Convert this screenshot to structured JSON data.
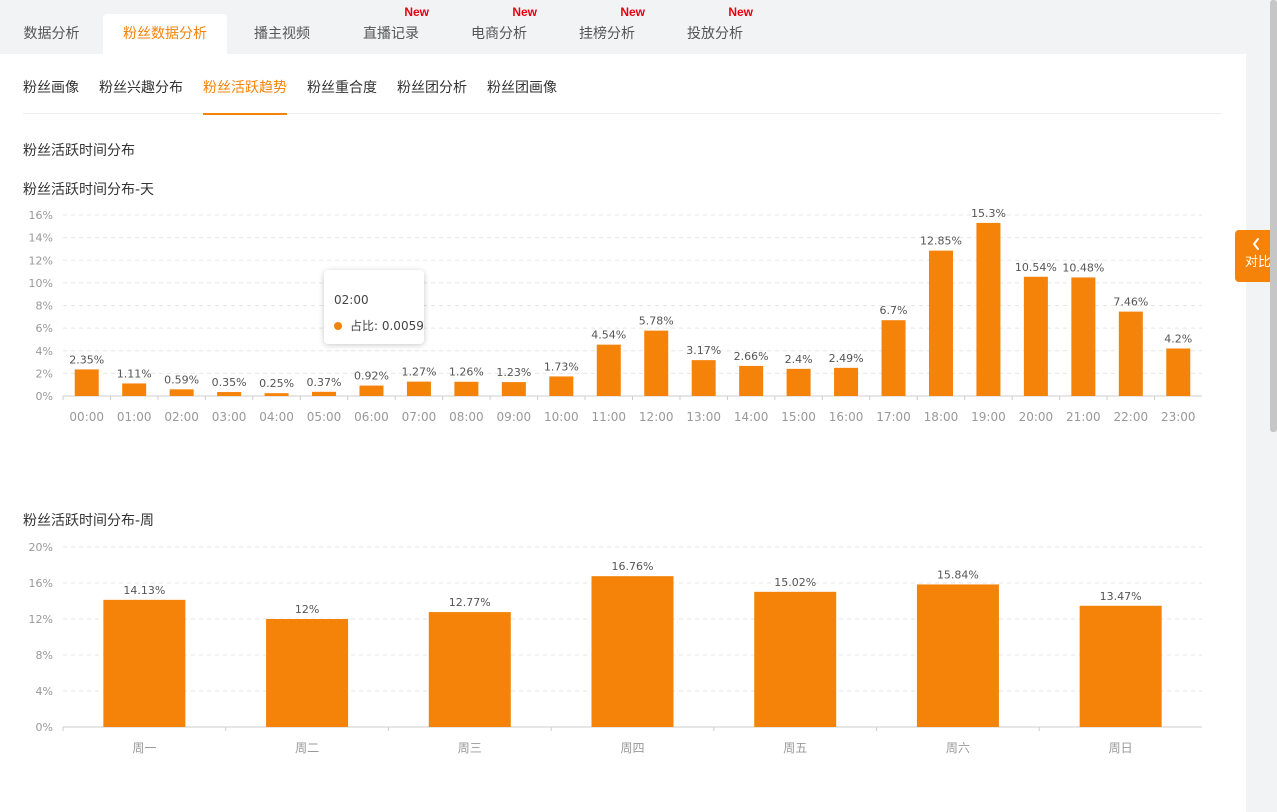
{
  "top_tabs": [
    {
      "label": "数据分析",
      "badge": "",
      "active": false
    },
    {
      "label": "粉丝数据分析",
      "badge": "",
      "active": true
    },
    {
      "label": "播主视频",
      "badge": "",
      "active": false
    },
    {
      "label": "直播记录",
      "badge": "New",
      "active": false
    },
    {
      "label": "电商分析",
      "badge": "New",
      "active": false
    },
    {
      "label": "挂榜分析",
      "badge": "New",
      "active": false
    },
    {
      "label": "投放分析",
      "badge": "New",
      "active": false
    }
  ],
  "sub_tabs": [
    {
      "label": "粉丝画像",
      "active": false
    },
    {
      "label": "粉丝兴趣分布",
      "active": false
    },
    {
      "label": "粉丝活跃趋势",
      "active": true
    },
    {
      "label": "粉丝重合度",
      "active": false
    },
    {
      "label": "粉丝团分析",
      "active": false
    },
    {
      "label": "粉丝团画像",
      "active": false
    }
  ],
  "section_title": "粉丝活跃时间分布",
  "compare_button": {
    "label": "对比",
    "icon": "chevron-left-icon"
  },
  "tooltip": {
    "title": "02:00",
    "series_label": "占比: 0.0059"
  },
  "colors": {
    "accent": "#f5830a",
    "badge": "#e8000b"
  },
  "chart_data": [
    {
      "type": "bar",
      "title": "粉丝活跃时间分布-天",
      "categories": [
        "00:00",
        "01:00",
        "02:00",
        "03:00",
        "04:00",
        "05:00",
        "06:00",
        "07:00",
        "08:00",
        "09:00",
        "10:00",
        "11:00",
        "12:00",
        "13:00",
        "14:00",
        "15:00",
        "16:00",
        "17:00",
        "18:00",
        "19:00",
        "20:00",
        "21:00",
        "22:00",
        "23:00"
      ],
      "values": [
        2.35,
        1.11,
        0.59,
        0.35,
        0.25,
        0.37,
        0.92,
        1.27,
        1.26,
        1.23,
        1.73,
        4.54,
        5.78,
        3.17,
        2.66,
        2.4,
        2.49,
        6.7,
        12.85,
        15.3,
        10.54,
        10.48,
        7.46,
        4.2
      ],
      "data_labels": [
        "2.35%",
        "1.11%",
        "0.59%",
        "0.35%",
        "0.25%",
        "0.37%",
        "0.92%",
        "1.27%",
        "1.26%",
        "1.23%",
        "1.73%",
        "4.54%",
        "5.78%",
        "3.17%",
        "2.66%",
        "2.4%",
        "2.49%",
        "6.7%",
        "12.85%",
        "15.3%",
        "10.54%",
        "10.48%",
        "7.46%",
        "4.2%"
      ],
      "yticks": [
        "0%",
        "2%",
        "4%",
        "6%",
        "8%",
        "10%",
        "12%",
        "14%",
        "16%"
      ],
      "ylim": [
        0,
        16
      ],
      "grid": true
    },
    {
      "type": "bar",
      "title": "粉丝活跃时间分布-周",
      "categories": [
        "周一",
        "周二",
        "周三",
        "周四",
        "周五",
        "周六",
        "周日"
      ],
      "values": [
        14.13,
        12,
        12.77,
        16.76,
        15.02,
        15.84,
        13.47
      ],
      "data_labels": [
        "14.13%",
        "12%",
        "12.77%",
        "16.76%",
        "15.02%",
        "15.84%",
        "13.47%"
      ],
      "yticks": [
        "0%",
        "4%",
        "8%",
        "12%",
        "16%",
        "20%"
      ],
      "ylim": [
        0,
        20
      ],
      "grid": true
    }
  ]
}
